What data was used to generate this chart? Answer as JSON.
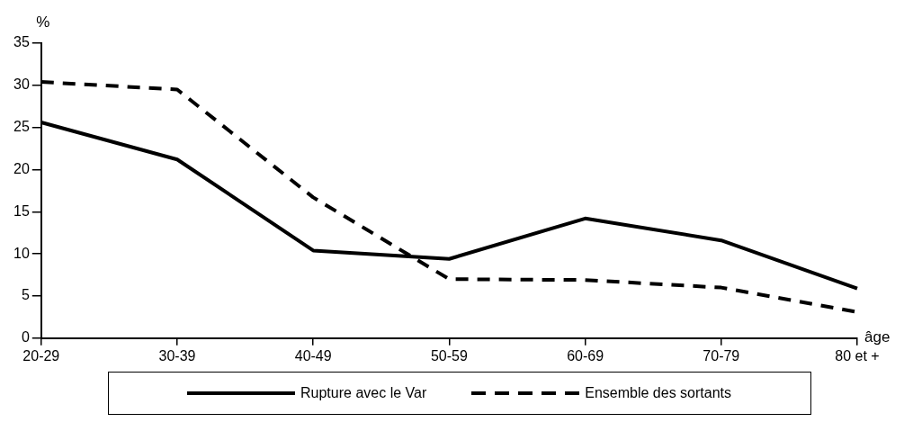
{
  "chart_data": {
    "type": "line",
    "xlabel": "âge",
    "ylabel": "%",
    "categories": [
      "20-29",
      "30-39",
      "40-49",
      "50-59",
      "60-69",
      "70-79",
      "80 et +"
    ],
    "series": [
      {
        "name": "Rupture avec le Var",
        "color": "#000000",
        "line_style": "solid",
        "values": [
          25.6,
          21.2,
          10.4,
          9.4,
          14.2,
          11.6,
          5.9
        ]
      },
      {
        "name": "Ensemble des sortants",
        "color": "#000000",
        "line_style": "dashed",
        "values": [
          30.4,
          29.5,
          16.7,
          7.0,
          6.9,
          6.0,
          3.1
        ]
      }
    ],
    "ylim": [
      0,
      35
    ],
    "yticks": [
      0,
      5,
      10,
      15,
      20,
      25,
      30,
      35
    ],
    "grid": false,
    "legend": "bottom",
    "marker": "none"
  }
}
